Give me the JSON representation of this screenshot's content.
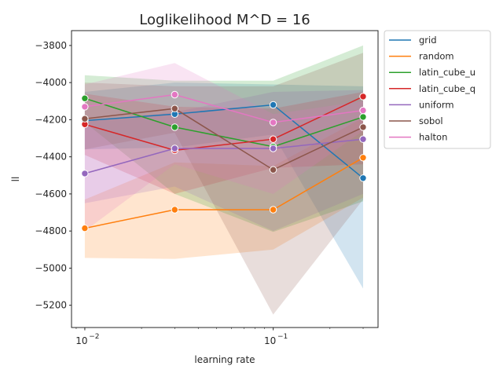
{
  "chart_data": {
    "type": "line",
    "title": "Loglikelihood M^D = 16",
    "xlabel": "learning rate",
    "ylabel": "ll",
    "xscale": "log",
    "x": [
      0.01,
      0.03,
      0.1,
      0.3
    ],
    "xlim": [
      0.0085,
      0.36
    ],
    "ylim": [
      -5320,
      -3720
    ],
    "x_ticks": [
      {
        "value": 0.01,
        "base": "10",
        "exp": "−2"
      },
      {
        "value": 0.1,
        "base": "10",
        "exp": "−1"
      }
    ],
    "y_ticks": [
      -5200,
      -5000,
      -4800,
      -4600,
      -4400,
      -4200,
      -4000,
      -3800
    ],
    "y_tick_labels": [
      "−5200",
      "−5000",
      "−4800",
      "−4600",
      "−4400",
      "−4200",
      "−4000",
      "−3800"
    ],
    "grid": false,
    "legend_position": "outside-top-right",
    "series": [
      {
        "name": "grid",
        "color": "#1f77b4",
        "values": [
          -4205,
          -4170,
          -4120,
          -4515
        ],
        "lower": [
          -4360,
          -4350,
          -4280,
          -5110
        ],
        "upper": [
          -4050,
          -4000,
          -4010,
          -4020
        ]
      },
      {
        "name": "random",
        "color": "#ff7f0e",
        "values": [
          -4785,
          -4685,
          -4685,
          -4405
        ],
        "lower": [
          -4945,
          -4950,
          -4900,
          -4620
        ],
        "upper": [
          -4630,
          -4430,
          -4450,
          -4190
        ]
      },
      {
        "name": "latin_cube_u",
        "color": "#2ca02c",
        "values": [
          -4085,
          -4240,
          -4345,
          -4185
        ],
        "lower": [
          -4215,
          -4600,
          -4805,
          -4640
        ],
        "upper": [
          -3960,
          -3990,
          -3990,
          -3800
        ]
      },
      {
        "name": "latin_cube_q",
        "color": "#d62728",
        "values": [
          -4225,
          -4365,
          -4305,
          -4075
        ],
        "lower": [
          -4390,
          -4600,
          -4460,
          -4440
        ],
        "upper": [
          -4060,
          -4130,
          -4140,
          -4050
        ]
      },
      {
        "name": "uniform",
        "color": "#9467bd",
        "values": [
          -4490,
          -4355,
          -4355,
          -4305
        ],
        "lower": [
          -4650,
          -4560,
          -4800,
          -4600
        ],
        "upper": [
          -4210,
          -4160,
          -4050,
          -4040
        ]
      },
      {
        "name": "sobol",
        "color": "#8c564b",
        "values": [
          -4195,
          -4140,
          -4470,
          -4240
        ],
        "lower": [
          -4360,
          -4270,
          -5250,
          -4630
        ],
        "upper": [
          -4000,
          -4020,
          -4020,
          -3840
        ]
      },
      {
        "name": "halton",
        "color": "#e377c2",
        "values": [
          -4130,
          -4065,
          -4215,
          -4150
        ],
        "lower": [
          -4800,
          -4440,
          -4600,
          -4260
        ],
        "upper": [
          -4010,
          -3895,
          -4170,
          -4100
        ]
      }
    ]
  }
}
